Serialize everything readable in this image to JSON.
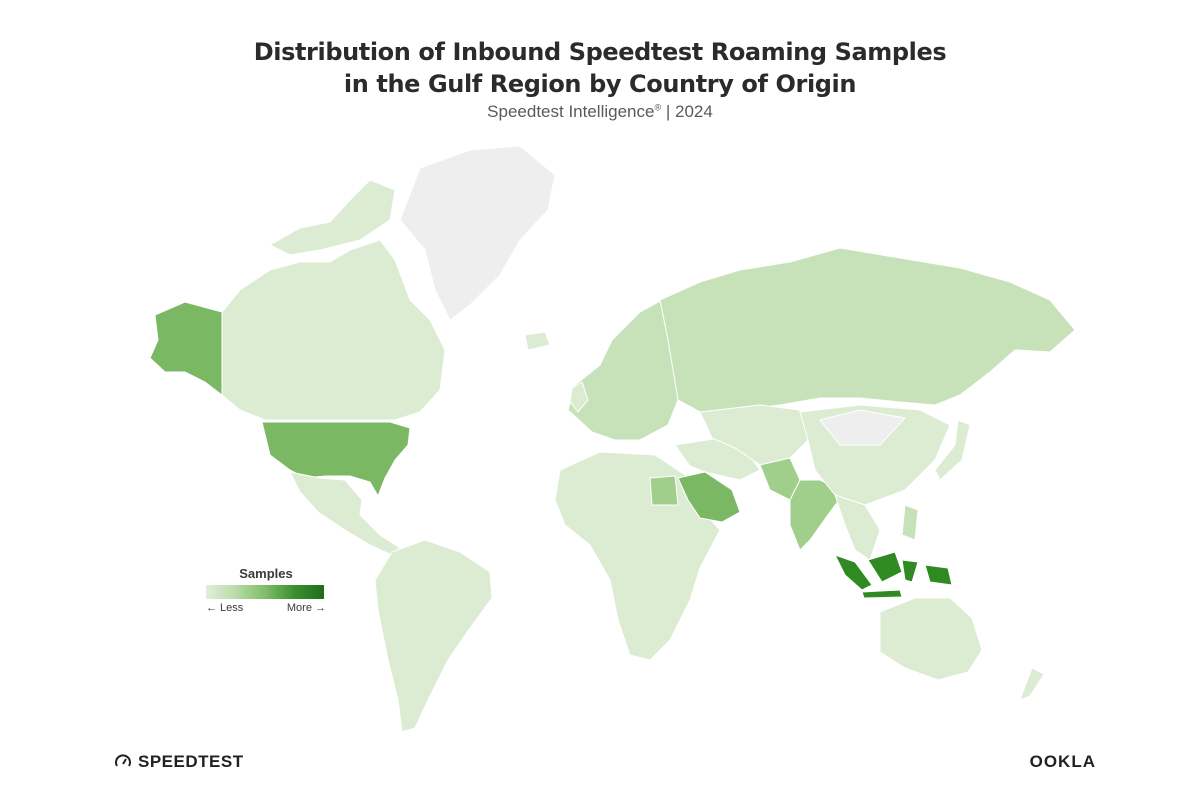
{
  "title": {
    "line1": "Distribution of Inbound Speedtest Roaming Samples",
    "line2": "in the Gulf Region by Country of Origin"
  },
  "subtitle": {
    "source": "Speedtest Intelligence",
    "mark": "®",
    "year": "| 2024"
  },
  "legend": {
    "title": "Samples",
    "less": "← Less",
    "more": "More →",
    "colors": [
      "#e2efdb",
      "#b9dba9",
      "#7fbd6a",
      "#3d8f2e",
      "#1f6b17"
    ]
  },
  "colors": {
    "no_data": "#eeeeee",
    "level1": "#dcecd2",
    "level2": "#c7e2b9",
    "level3": "#9fcf8a",
    "level4": "#7bb864",
    "level5": "#2f8a22"
  },
  "regions": [
    {
      "name": "Alaska",
      "level": 4
    },
    {
      "name": "Canada",
      "level": 1
    },
    {
      "name": "Greenland",
      "level": 0
    },
    {
      "name": "United States",
      "level": 4
    },
    {
      "name": "Mexico",
      "level": 1
    },
    {
      "name": "South America",
      "level": 1
    },
    {
      "name": "Europe",
      "level": 2
    },
    {
      "name": "Russia",
      "level": 2
    },
    {
      "name": "Africa",
      "level": 1
    },
    {
      "name": "Egypt",
      "level": 3
    },
    {
      "name": "Saudi Arabia",
      "level": 4
    },
    {
      "name": "India",
      "level": 3
    },
    {
      "name": "Pakistan",
      "level": 3
    },
    {
      "name": "China",
      "level": 1
    },
    {
      "name": "Mongolia",
      "level": 0
    },
    {
      "name": "Indonesia",
      "level": 5
    },
    {
      "name": "Philippines",
      "level": 2
    },
    {
      "name": "Australia",
      "level": 1
    },
    {
      "name": "New Zealand",
      "level": 1
    },
    {
      "name": "Japan",
      "level": 1
    }
  ],
  "footer": {
    "speedtest_logo": "SPEEDTEST",
    "ookla_logo": "OOKLA"
  }
}
